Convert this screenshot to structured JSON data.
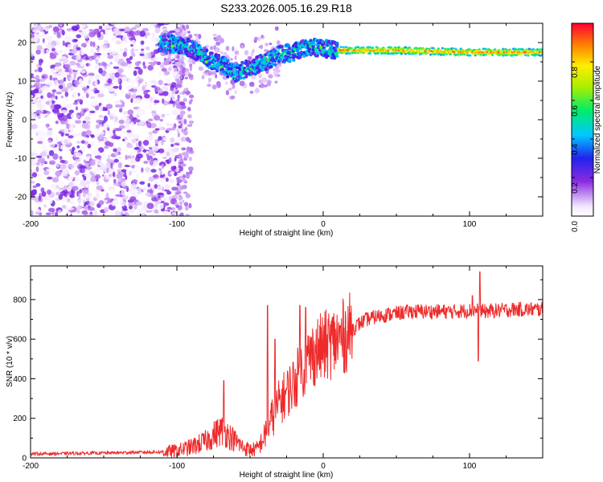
{
  "chart_data": [
    {
      "type": "heatmap",
      "title": "S233.2026.005.16.29.R18",
      "xlabel": "Height of straight line (km)",
      "ylabel": "Frequency (Hz)",
      "xlim": [
        -200,
        150
      ],
      "ylim": [
        -25,
        25
      ],
      "xticks": [
        -200,
        -100,
        0,
        100
      ],
      "yticks": [
        -20,
        -10,
        0,
        10,
        20
      ],
      "colorbar": {
        "label": "Normalized spectral amplitude",
        "range": [
          0,
          1
        ],
        "ticks": [
          0.0,
          0.2,
          0.4,
          0.6,
          0.8
        ],
        "tick_labels": [
          "0.0",
          "0.2",
          "0.4",
          "0.6",
          "0.8"
        ]
      },
      "ridge": {
        "description": "dominant frequency band",
        "x_km": [
          -110,
          -100,
          -90,
          -80,
          -70,
          -60,
          -50,
          -40,
          -30,
          -20,
          -10,
          0,
          10,
          50,
          100,
          150
        ],
        "freq_hz": [
          20,
          19.5,
          18.5,
          16,
          14.5,
          12,
          13.5,
          15,
          17,
          17.5,
          19,
          18.5,
          18,
          18,
          17.5,
          17.5
        ]
      }
    },
    {
      "type": "line",
      "title": "",
      "xlabel": "Height of straight line (km)",
      "ylabel": "SNR (10 * v/v)",
      "xlim": [
        -200,
        150
      ],
      "ylim": [
        0,
        970
      ],
      "xticks": [
        -200,
        -100,
        0,
        100
      ],
      "yticks": [
        0,
        200,
        400,
        600,
        800
      ],
      "series": [
        {
          "name": "SNR",
          "color": "#ee2a2a",
          "x": [
            -200,
            -150,
            -110,
            -100,
            -90,
            -80,
            -75,
            -70,
            -65,
            -60,
            -55,
            -50,
            -45,
            -40,
            -35,
            -30,
            -25,
            -20,
            -15,
            -10,
            -5,
            0,
            5,
            10,
            15,
            20,
            25,
            30,
            40,
            50,
            60,
            70,
            80,
            90,
            100,
            105,
            110,
            120,
            130,
            140,
            150
          ],
          "y": [
            20,
            25,
            30,
            35,
            55,
            85,
            115,
            140,
            120,
            85,
            55,
            40,
            45,
            110,
            200,
            280,
            330,
            380,
            440,
            500,
            540,
            560,
            580,
            595,
            620,
            650,
            680,
            700,
            720,
            730,
            740,
            740,
            740,
            740,
            745,
            745,
            740,
            745,
            750,
            750,
            750
          ]
        }
      ],
      "spikes": [
        {
          "x": -68,
          "y": 390
        },
        {
          "x": -38,
          "y": 770
        },
        {
          "x": -33,
          "y": 600
        },
        {
          "x": -16,
          "y": 770
        },
        {
          "x": -12,
          "y": 760
        },
        {
          "x": 102,
          "y": 820
        },
        {
          "x": 107,
          "y": 940
        },
        {
          "x": 106,
          "y": 490
        }
      ]
    }
  ]
}
